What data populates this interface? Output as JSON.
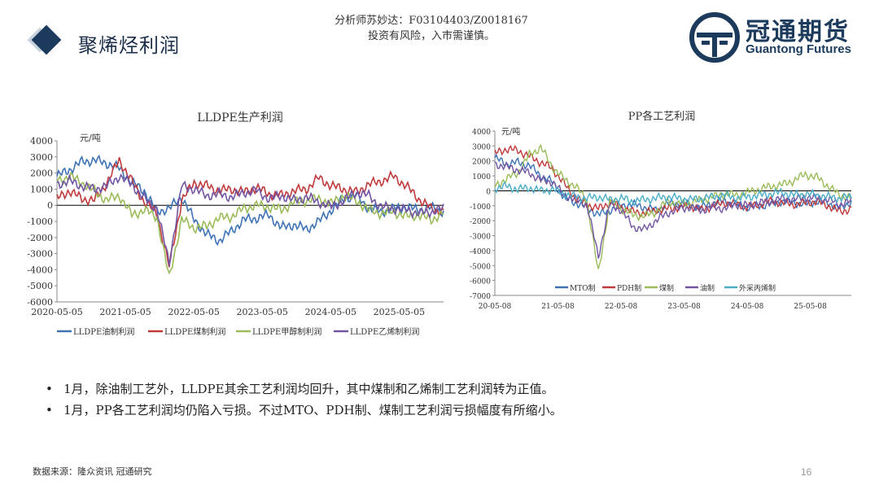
{
  "header": {
    "title": "聚烯烃利润",
    "analyst": "分析师苏妙达：F03104403/Z0018167",
    "risk": "投资有风险，入市需谨慎。",
    "logo_cn": "冠通期货",
    "logo_en": "Guantong Futures",
    "brand_color": "#1b3a5c"
  },
  "chart_data": [
    {
      "type": "line",
      "title": "LLDPE生产利润",
      "ylabel": "元/吨",
      "ylim": [
        -6000,
        4000
      ],
      "yticks": [
        "4000",
        "3000",
        "2000",
        "1000",
        "0",
        "-1000",
        "-2000",
        "-3000",
        "-4000",
        "-5000",
        "-6000"
      ],
      "xticks": [
        "2020-05-05",
        "2021-05-05",
        "2022-05-05",
        "2023-05-05",
        "2024-05-05",
        "2025-05-05"
      ],
      "legend_position": "bottom",
      "series": [
        {
          "name": "LLDPE油制利润",
          "color": "#3d72b4",
          "values": [
            1800,
            2200,
            2700,
            2800,
            2600,
            2300,
            1400,
            900,
            -400,
            -200,
            500,
            -900,
            -1800,
            -2200,
            -1600,
            -900,
            -800,
            -600,
            -1400,
            -1200,
            -1500,
            -1000,
            -300,
            400,
            600,
            -200,
            -400,
            -200,
            -100,
            -300,
            -150,
            -400
          ]
        },
        {
          "name": "LLDPE煤制利润",
          "color": "#c0393b",
          "values": [
            400,
            900,
            400,
            300,
            1400,
            2800,
            1500,
            200,
            -500,
            -3800,
            300,
            1400,
            1200,
            900,
            1000,
            800,
            1100,
            700,
            600,
            900,
            1000,
            1700,
            1200,
            1000,
            800,
            1300,
            1500,
            1800,
            1200,
            400,
            -200,
            -400
          ]
        },
        {
          "name": "LLDPE甲醇制利润",
          "color": "#9bbb59",
          "values": [
            1500,
            1800,
            1400,
            900,
            300,
            600,
            -600,
            -300,
            -700,
            -4500,
            -900,
            -1400,
            -1300,
            -800,
            -700,
            -200,
            0,
            -100,
            -300,
            200,
            300,
            400,
            100,
            600,
            300,
            -300,
            -500,
            -400,
            -700,
            -600,
            -900,
            -500
          ]
        },
        {
          "name": "LLDPE乙烯制利润",
          "color": "#7254a2",
          "values": [
            1300,
            1500,
            1200,
            1000,
            1200,
            1800,
            1300,
            400,
            -200,
            -3600,
            1200,
            1000,
            600,
            700,
            500,
            800,
            900,
            400,
            600,
            300,
            500,
            200,
            -100,
            300,
            800,
            600,
            -100,
            -200,
            -300,
            -500,
            -400,
            -200
          ]
        }
      ]
    },
    {
      "type": "line",
      "title": "PP各工艺利润",
      "ylabel": "元/吨",
      "ylim": [
        -7000,
        4000
      ],
      "yticks": [
        "4000",
        "3000",
        "2000",
        "1000",
        "0",
        "-1000",
        "-2000",
        "-3000",
        "-4000",
        "-5000",
        "-6000",
        "-7000"
      ],
      "xticks": [
        "20-05-08",
        "21-05-08",
        "22-05-08",
        "23-05-08",
        "24-05-08",
        "25-05-08"
      ],
      "legend_position": "inside-bottom",
      "series": [
        {
          "name": "MTO制",
          "color": "#3d72b4",
          "values": [
            2200,
            1800,
            1900,
            1700,
            1000,
            600,
            -400,
            -800,
            -1100,
            -1600,
            -1300,
            -1000,
            -900,
            -1100,
            -1300,
            -900,
            -800,
            -1000,
            -1100,
            -800,
            -700,
            -900,
            -1100,
            -1000,
            -900,
            -700,
            -800,
            -900,
            -700,
            -800,
            -1200,
            -700
          ]
        },
        {
          "name": "PDH制",
          "color": "#c0393b",
          "values": [
            2500,
            2800,
            2700,
            2300,
            1900,
            1500,
            500,
            -500,
            -900,
            -1200,
            -800,
            -1100,
            -1400,
            -1500,
            -1300,
            -1200,
            -1100,
            -1000,
            -1300,
            -1000,
            -800,
            -900,
            -1100,
            -900,
            -700,
            -800,
            -900,
            -800,
            -700,
            -1000,
            -1400,
            -1200
          ]
        },
        {
          "name": "煤制",
          "color": "#9bbb59",
          "values": [
            300,
            800,
            1200,
            2400,
            2900,
            1600,
            800,
            300,
            -600,
            -5500,
            -700,
            -1200,
            -1600,
            -1700,
            -1400,
            -700,
            -900,
            -800,
            -600,
            -400,
            -200,
            -300,
            -100,
            100,
            300,
            400,
            700,
            1100,
            900,
            300,
            -300,
            -500
          ]
        },
        {
          "name": "油制",
          "color": "#7254a2",
          "values": [
            1800,
            1600,
            1400,
            1200,
            700,
            600,
            -300,
            -600,
            -900,
            -4400,
            -900,
            -1300,
            -2400,
            -2600,
            -2000,
            -1500,
            -1200,
            -1100,
            -1300,
            -1100,
            -1200,
            -900,
            -1000,
            -800,
            -700,
            -500,
            -600,
            -400,
            -500,
            -600,
            -900,
            -700
          ]
        },
        {
          "name": "外采丙烯制",
          "color": "#4aacc6",
          "values": [
            200,
            300,
            100,
            200,
            0,
            100,
            -200,
            -400,
            -500,
            -400,
            -600,
            -500,
            -700,
            -600,
            -500,
            -400,
            -500,
            -600,
            -500,
            -400,
            -300,
            -500,
            -400,
            -300,
            -200,
            -100,
            -300,
            -200,
            -300,
            -400,
            -500,
            -400
          ]
        }
      ]
    }
  ],
  "bullets": [
    "1月，除油制工艺外，LLDPE其余工艺利润均回升，其中煤制和乙烯制工艺利润转为正值。",
    "1月，PP各工艺利润均仍陷入亏损。不过MTO、PDH制、煤制工艺利润亏损幅度有所缩小。"
  ],
  "bullet_mark": "•",
  "source": "数据来源：隆众资讯 冠通研究",
  "page_number": "16"
}
